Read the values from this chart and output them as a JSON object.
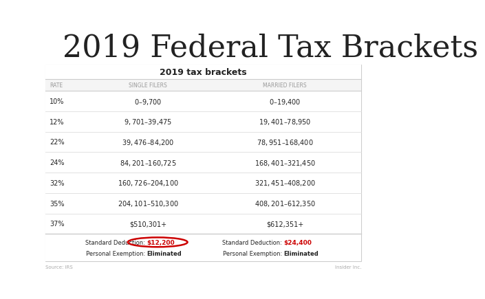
{
  "title": "2019 Federal Tax Brackets",
  "table_title": "2019 tax brackets",
  "col_headers": [
    "RATE",
    "SINGLE FILERS",
    "MARRIED FILERS"
  ],
  "rows": [
    [
      "10%",
      "$0 – $9,700",
      "$0 – $19,400"
    ],
    [
      "12%",
      "$9,701 – $39,475",
      "$19,401 – $78,950"
    ],
    [
      "22%",
      "$39,476 – $84,200",
      "$78,951 – $168,400"
    ],
    [
      "24%",
      "$84,201 – $160,725",
      "$168,401 – $321,450"
    ],
    [
      "32%",
      "$160,726 – $204,100",
      "$321,451 – $408,200"
    ],
    [
      "35%",
      "$204,101 – $510,300",
      "$408,201 – $612,350"
    ],
    [
      "37%",
      "$510,301+",
      "$612,351+"
    ]
  ],
  "single_std_label": "Standard Deduction: ",
  "single_std_value": "$12,200",
  "married_std_label": "Standard Deduction: ",
  "married_std_value": "$24,400",
  "pe_label": "Personal Exemption: ",
  "pe_value": "Eliminated",
  "source_left": "Source: IRS",
  "source_right": "Insider Inc.",
  "bg_color": "#ffffff",
  "table_outer_bg": "#eeeeee",
  "table_inner_bg": "#ffffff",
  "border_color": "#cccccc",
  "row_line_color": "#dddddd",
  "text_color": "#222222",
  "red_color": "#cc0000",
  "gray_color": "#aaaaaa",
  "header_text_color": "#999999",
  "circle_color": "#cc0000",
  "title_fontsize": 32,
  "table_title_fontsize": 9,
  "header_fontsize": 5.5,
  "cell_fontsize": 7,
  "footer_fontsize": 6,
  "source_fontsize": 5
}
